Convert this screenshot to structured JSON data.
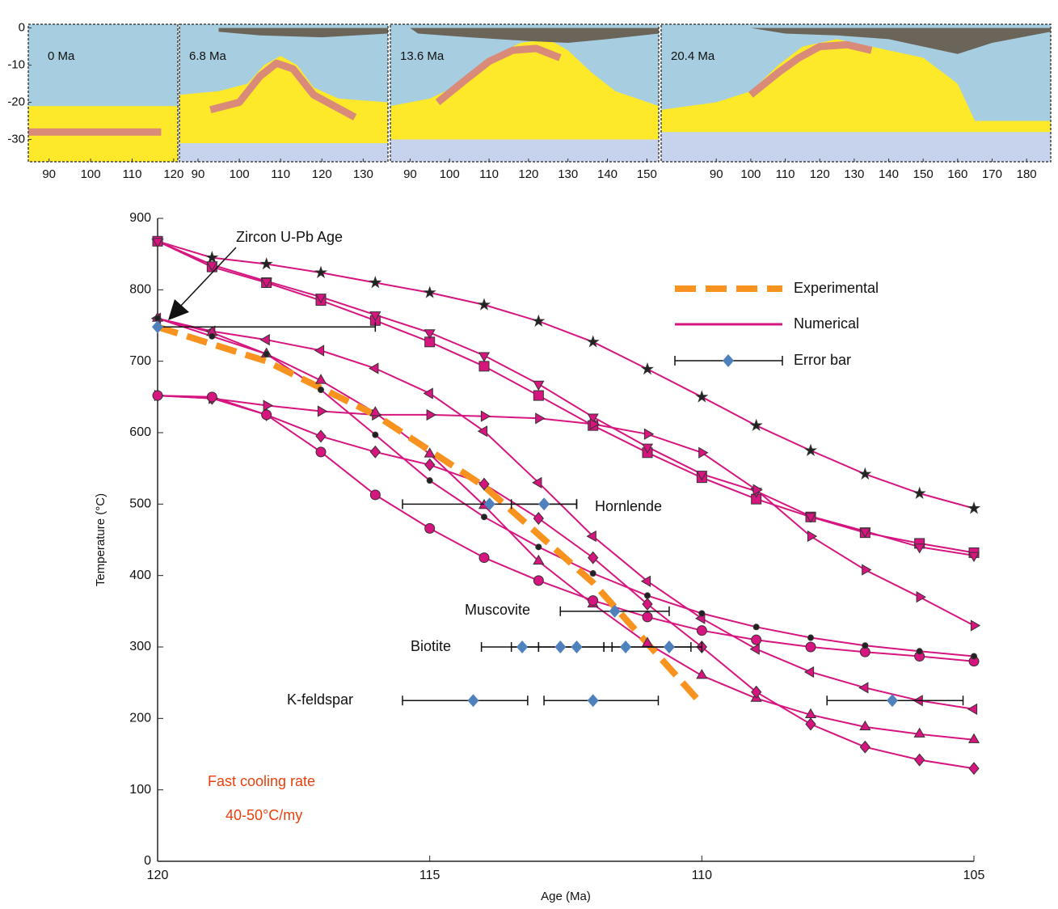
{
  "chart_data": [
    {
      "type": "section",
      "title": "0 Ma",
      "xlim": [
        85,
        121
      ],
      "xticks": [
        90,
        100,
        110,
        120
      ],
      "ylim": [
        -36,
        1
      ],
      "yticks": [
        0,
        -10,
        -20,
        -30
      ]
    },
    {
      "type": "section",
      "title": "6.8 Ma",
      "xlim": [
        85.5,
        136
      ],
      "xticks": [
        90,
        100,
        110,
        120,
        130
      ],
      "ylim": [
        -36,
        1
      ]
    },
    {
      "type": "section",
      "title": "13.6 Ma",
      "xlim": [
        85,
        153
      ],
      "xticks": [
        90,
        100,
        110,
        120,
        130,
        140,
        150
      ],
      "ylim": [
        -36,
        1
      ]
    },
    {
      "type": "section",
      "title": "20.4 Ma",
      "xlim": [
        74,
        187
      ],
      "xticks": [
        90,
        100,
        110,
        120,
        130,
        140,
        150,
        160,
        170,
        180
      ],
      "ylim": [
        -36,
        1
      ]
    },
    {
      "type": "line",
      "xlabel": "Age (Ma)",
      "ylabel": "Temperature (°C)",
      "xlim": [
        120,
        105
      ],
      "ylim": [
        0,
        900
      ],
      "xticks": [
        120,
        115,
        110,
        105
      ],
      "yticks": [
        0,
        100,
        200,
        300,
        400,
        500,
        600,
        700,
        800,
        900
      ],
      "legend": "upper right",
      "experimental": {
        "name": "Experimental",
        "color": "#f7931e",
        "x": [
          120,
          118,
          116,
          114,
          112,
          110
        ],
        "values": [
          748,
          700,
          625,
          525,
          390,
          220
        ]
      },
      "numerical": {
        "name": "Numerical",
        "color": "#d6157f",
        "x": [
          120,
          119,
          118,
          117,
          116,
          115,
          114,
          113,
          112,
          111,
          110,
          109,
          108,
          107,
          106,
          105
        ],
        "series": [
          {
            "marker": "star",
            "marker_color": "#222222",
            "values": [
              868,
              845,
              836,
              824,
              810,
              796,
              779,
              756,
              727,
              689,
              650,
              610,
              575,
              542,
              515,
              494
            ]
          },
          {
            "marker": "square",
            "marker_color": "#d6157f",
            "values": [
              868,
              832,
              810,
              785,
              757,
              727,
              693,
              652,
              610,
              572,
              537,
              507,
              482,
              460,
              445,
              432
            ]
          },
          {
            "marker": "triangle-down",
            "marker_color": "#d6157f",
            "values": [
              868,
              835,
              812,
              790,
              765,
              740,
              708,
              668,
              622,
              580,
              542,
              518,
              483,
              462,
              440,
              428
            ]
          },
          {
            "marker": "triangle-right",
            "marker_color": "#d6157f",
            "values": [
              652,
              648,
              638,
              630,
              625,
              625,
              623,
              620,
              612,
              598,
              572,
              520,
              455,
              408,
              370,
              330
            ]
          },
          {
            "marker": "triangle-left",
            "marker_color": "#d6157f",
            "values": [
              760,
              742,
              730,
              715,
              690,
              655,
              602,
              530,
              455,
              392,
              340,
              297,
              265,
              243,
              225,
              213
            ]
          },
          {
            "marker": "triangle-up",
            "marker_color": "#d6157f",
            "values": [
              760,
              740,
              710,
              673,
              628,
              570,
              498,
              420,
              360,
              305,
              260,
              228,
              205,
              188,
              178,
              170
            ]
          },
          {
            "marker": "diamond",
            "marker_color": "#d6157f",
            "values": [
              652,
              648,
              625,
              595,
              573,
              555,
              528,
              480,
              425,
              360,
              300,
              237,
              192,
              160,
              142,
              130
            ]
          },
          {
            "marker": "circle",
            "marker_color": "#d6157f",
            "values": [
              652,
              650,
              625,
              573,
              513,
              466,
              425,
              393,
              365,
              342,
              323,
              310,
              300,
              293,
              287,
              280
            ]
          },
          {
            "marker": "dot",
            "marker_color": "#222222",
            "values": [
              760,
              735,
              710,
              660,
              597,
              533,
              482,
              440,
              403,
              372,
              347,
              328,
              313,
              302,
              294,
              287
            ]
          }
        ]
      },
      "error_bars": {
        "name": "Error bar",
        "color": "#4f81bd",
        "points": [
          {
            "x": 120,
            "y": 748,
            "xrange": [
              120,
              116
            ]
          },
          {
            "x": 113.9,
            "y": 500,
            "xrange": [
              115.5,
              112.3
            ]
          },
          {
            "x": 112.9,
            "y": 500,
            "xrange": [
              113.5,
              112.3
            ]
          },
          {
            "x": 111.6,
            "y": 350,
            "xrange": [
              112.6,
              110.6
            ]
          },
          {
            "x": 113.3,
            "y": 300,
            "xrange": [
              114.05,
              113.0
            ]
          },
          {
            "x": 112.6,
            "y": 300,
            "xrange": [
              113.5,
              111.8
            ]
          },
          {
            "x": 112.3,
            "y": 300,
            "xrange": [
              113.0,
              111.65
            ]
          },
          {
            "x": 111.4,
            "y": 300,
            "xrange": [
              111.8,
              110.2
            ]
          },
          {
            "x": 110.6,
            "y": 300,
            "xrange": [
              111.65,
              110.0
            ]
          },
          {
            "x": 114.2,
            "y": 225,
            "xrange": [
              115.5,
              113.2
            ]
          },
          {
            "x": 112.0,
            "y": 225,
            "xrange": [
              112.9,
              110.8
            ]
          },
          {
            "x": 106.5,
            "y": 225,
            "xrange": [
              107.7,
              105.2
            ]
          }
        ]
      },
      "annotations": [
        "Zircon U-Pb Age",
        "Hornlende",
        "Muscovite",
        "Biotite",
        "K-feldspar",
        "Fast cooling rate",
        "40-50°C/my"
      ],
      "note_color": "#e8400c"
    }
  ]
}
